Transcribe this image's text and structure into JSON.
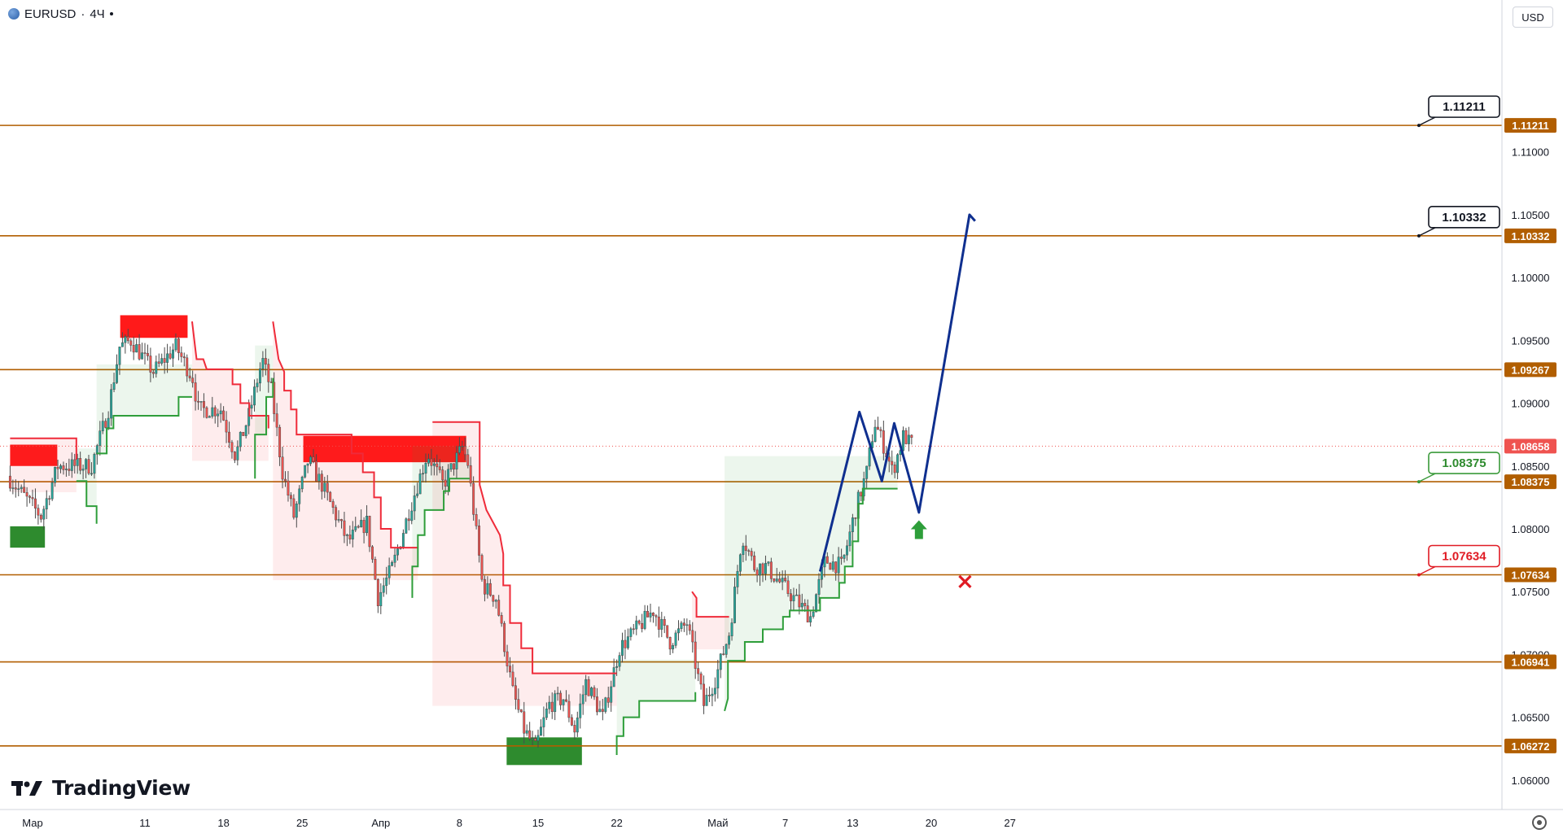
{
  "header": {
    "symbol": "EURUSD",
    "separator": "·",
    "interval": "4Ч"
  },
  "currency_button": {
    "label": "USD"
  },
  "brand": {
    "name": "TradingView"
  },
  "icons": {
    "symbol": "globe-icon",
    "logo": "tradingview-logo-icon",
    "settings": "gear-icon"
  },
  "colors": {
    "level_line": "#b15e00",
    "level_label_bg": "#b15e00",
    "bull_candle": "#26a69a",
    "bear_candle": "#ef5350",
    "up_trend": "#2e9e3a",
    "down_trend": "#ef2b3a",
    "supply_zone": "#ff1a1a",
    "demand_zone": "#2e8b2e",
    "projection": "#0f2f8f",
    "current_price": "#ef5350"
  },
  "chart_data": {
    "type": "candlestick",
    "symbol": "EURUSD",
    "interval": "4Ч",
    "ylim": [
      1.0585,
      1.1195
    ],
    "y_ticks": [
      "1.06000",
      "1.06500",
      "1.07000",
      "1.07500",
      "1.08000",
      "1.08500",
      "1.09000",
      "1.09500",
      "1.10000",
      "1.10500",
      "1.11000"
    ],
    "x_ticks": [
      {
        "label": "Мар",
        "day": 0
      },
      {
        "label": "11",
        "day": 10
      },
      {
        "label": "18",
        "day": 17
      },
      {
        "label": "25",
        "day": 24
      },
      {
        "label": "Апр",
        "day": 31
      },
      {
        "label": "8",
        "day": 38
      },
      {
        "label": "15",
        "day": 45
      },
      {
        "label": "22",
        "day": 52
      },
      {
        "label": "Май",
        "day": 61
      },
      {
        "label": "7",
        "day": 67
      },
      {
        "label": "13",
        "day": 73
      },
      {
        "label": "20",
        "day": 80
      },
      {
        "label": "27",
        "day": 87
      }
    ],
    "current_price": 1.08658,
    "levels": [
      1.11211,
      1.10332,
      1.09267,
      1.08375,
      1.07634,
      1.06941,
      1.06272
    ],
    "target_labels": [
      {
        "label": "1.11211",
        "value": 1.11211,
        "style": "target"
      },
      {
        "label": "1.10332",
        "value": 1.10332,
        "style": "target"
      },
      {
        "label": "1.08375",
        "value": 1.08375,
        "style": "entry"
      },
      {
        "label": "1.07634",
        "value": 1.07634,
        "style": "stop"
      }
    ],
    "zones": [
      {
        "kind": "supply",
        "day_from": 7.8,
        "day_to": 13.8,
        "low": 1.0952,
        "high": 1.097
      },
      {
        "kind": "supply",
        "day_from": -2.0,
        "day_to": 2.2,
        "low": 1.085,
        "high": 1.0867
      },
      {
        "kind": "supply",
        "day_from": 24.1,
        "day_to": 38.6,
        "low": 1.0853,
        "high": 1.0874
      },
      {
        "kind": "demand",
        "day_from": -2.0,
        "day_to": 1.1,
        "low": 1.0785,
        "high": 1.0802
      },
      {
        "kind": "demand",
        "day_from": 42.2,
        "day_to": 48.9,
        "low": 1.0612,
        "high": 1.0634
      }
    ],
    "trend_lines": [
      {
        "trend": "down",
        "points": [
          [
            -2,
            1.0872
          ],
          [
            3.9,
            1.0872
          ],
          [
            3.9,
            1.0855
          ]
        ]
      },
      {
        "trend": "up",
        "points": [
          [
            3.9,
            1.0838
          ],
          [
            4.8,
            1.0838
          ],
          [
            4.8,
            1.0818
          ],
          [
            5.7,
            1.0818
          ],
          [
            5.7,
            1.0804
          ]
        ]
      },
      {
        "trend": "up",
        "points": [
          [
            5.7,
            1.086
          ],
          [
            6.6,
            1.086
          ],
          [
            6.6,
            1.088
          ],
          [
            7.2,
            1.088
          ],
          [
            7.2,
            1.089
          ],
          [
            13.0,
            1.089
          ],
          [
            13.0,
            1.0905
          ],
          [
            14.2,
            1.0905
          ]
        ]
      },
      {
        "trend": "down",
        "points": [
          [
            14.2,
            1.0965
          ],
          [
            14.6,
            1.0935
          ],
          [
            15.2,
            1.0935
          ],
          [
            15.5,
            1.0927
          ],
          [
            17.8,
            1.0927
          ],
          [
            17.8,
            1.0915
          ],
          [
            18.5,
            1.0915
          ],
          [
            18.5,
            1.09
          ],
          [
            19.3,
            1.09
          ],
          [
            19.3,
            1.089
          ],
          [
            21.0,
            1.089
          ],
          [
            21.0,
            1.088
          ]
        ]
      },
      {
        "trend": "up",
        "points": [
          [
            19.8,
            1.084
          ],
          [
            19.8,
            1.0875
          ],
          [
            20.8,
            1.0875
          ],
          [
            20.8,
            1.0905
          ],
          [
            21.4,
            1.0905
          ],
          [
            21.4,
            1.092
          ]
        ]
      },
      {
        "trend": "down",
        "points": [
          [
            21.4,
            1.0965
          ],
          [
            21.9,
            1.0935
          ],
          [
            22.4,
            1.0925
          ],
          [
            22.4,
            1.091
          ],
          [
            23.0,
            1.091
          ],
          [
            23.0,
            1.0895
          ],
          [
            23.5,
            1.0895
          ],
          [
            23.5,
            1.0875
          ],
          [
            24.1,
            1.0875
          ],
          [
            28.4,
            1.0875
          ],
          [
            28.4,
            1.086
          ],
          [
            29.4,
            1.086
          ],
          [
            29.4,
            1.0845
          ],
          [
            30.4,
            1.0845
          ],
          [
            30.4,
            1.0825
          ],
          [
            31.0,
            1.0825
          ],
          [
            31.0,
            1.08
          ],
          [
            31.9,
            1.08
          ],
          [
            31.9,
            1.0785
          ],
          [
            34.3,
            1.0785
          ]
        ]
      },
      {
        "trend": "up",
        "points": [
          [
            33.8,
            1.0745
          ],
          [
            33.8,
            1.077
          ],
          [
            34.3,
            1.077
          ],
          [
            34.3,
            1.0795
          ],
          [
            34.9,
            1.0795
          ],
          [
            34.9,
            1.0815
          ],
          [
            36.6,
            1.0815
          ],
          [
            36.6,
            1.083
          ],
          [
            37.1,
            1.083
          ],
          [
            37.1,
            1.084
          ],
          [
            38.9,
            1.084
          ]
        ]
      },
      {
        "trend": "down",
        "points": [
          [
            35.6,
            1.0885
          ],
          [
            39.8,
            1.0885
          ],
          [
            39.8,
            1.0835
          ],
          [
            40.4,
            1.0815
          ],
          [
            41.0,
            1.0805
          ],
          [
            41.6,
            1.0795
          ],
          [
            41.9,
            1.078
          ],
          [
            41.9,
            1.0755
          ],
          [
            42.5,
            1.0755
          ],
          [
            42.5,
            1.0725
          ],
          [
            43.5,
            1.0725
          ],
          [
            43.5,
            1.0705
          ],
          [
            44.5,
            1.0705
          ],
          [
            44.5,
            1.0685
          ],
          [
            52.0,
            1.0685
          ]
        ]
      },
      {
        "trend": "up",
        "points": [
          [
            52.0,
            1.062
          ],
          [
            52.0,
            1.0635
          ],
          [
            52.6,
            1.0635
          ],
          [
            52.6,
            1.065
          ],
          [
            54.0,
            1.065
          ],
          [
            54.0,
            1.0663
          ],
          [
            59.0,
            1.0663
          ],
          [
            59.0,
            1.067
          ]
        ]
      },
      {
        "trend": "down",
        "points": [
          [
            58.7,
            1.075
          ],
          [
            59.1,
            1.0745
          ],
          [
            59.1,
            1.073
          ],
          [
            62.0,
            1.073
          ]
        ]
      },
      {
        "trend": "up",
        "points": [
          [
            61.6,
            1.0655
          ],
          [
            61.9,
            1.0665
          ],
          [
            61.9,
            1.0695
          ],
          [
            63.4,
            1.0695
          ],
          [
            63.4,
            1.071
          ],
          [
            65.0,
            1.071
          ],
          [
            65.0,
            1.072
          ],
          [
            66.8,
            1.072
          ],
          [
            66.8,
            1.073
          ],
          [
            67.4,
            1.073
          ],
          [
            67.4,
            1.0735
          ],
          [
            70.1,
            1.0735
          ],
          [
            70.1,
            1.0745
          ],
          [
            71.8,
            1.0745
          ],
          [
            71.8,
            1.0757
          ],
          [
            72.3,
            1.0757
          ],
          [
            72.3,
            1.077
          ],
          [
            73.0,
            1.077
          ],
          [
            73.0,
            1.079
          ],
          [
            73.5,
            1.079
          ],
          [
            73.5,
            1.082
          ],
          [
            73.9,
            1.082
          ],
          [
            73.9,
            1.0832
          ],
          [
            77.0,
            1.0832
          ]
        ]
      }
    ],
    "projection_path": [
      [
        70.1,
        1.0766
      ],
      [
        73.6,
        1.0893
      ],
      [
        75.6,
        1.0838
      ],
      [
        76.7,
        1.0884
      ],
      [
        78.9,
        1.0813
      ],
      [
        83.4,
        1.105
      ],
      [
        83.9,
        1.1045
      ]
    ],
    "arrow_up": {
      "day": 78.9,
      "price": 1.0801
    },
    "stop_cross": {
      "day": 83.0,
      "price": 1.0758
    }
  }
}
